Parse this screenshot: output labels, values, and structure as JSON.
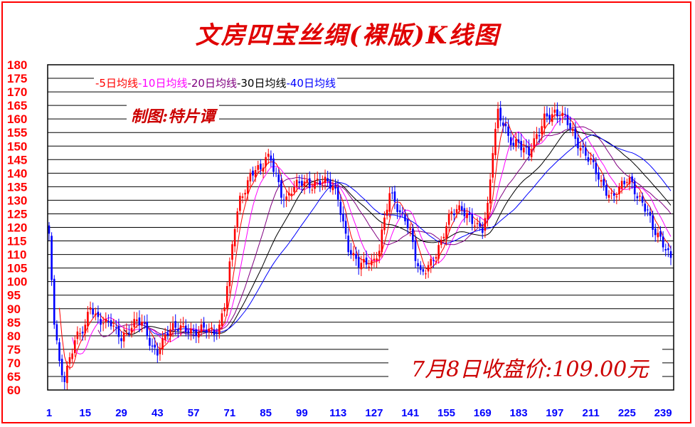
{
  "title": "文房四宝丝绸(裸版)K线图",
  "legend": [
    {
      "label": "-5日均线",
      "color": "#ff0000"
    },
    {
      "label": "-10日均线",
      "color": "#ff00ff"
    },
    {
      "label": "-20日均线",
      "color": "#800080"
    },
    {
      "label": "-30日均线",
      "color": "#000000"
    },
    {
      "label": "-40日均线",
      "color": "#0000ff"
    }
  ],
  "author": "制图:特片谭",
  "close_note": "7月8日收盘价:109.00元",
  "colors": {
    "border": "#ff0000",
    "up": "#ff0000",
    "down": "#0000ff",
    "axis_labels_y": "#ff0000",
    "axis_labels_x": "#0000ff"
  },
  "chart_data": {
    "type": "candlestick",
    "title": "文房四宝丝绸(裸版)K线图",
    "y_ticks": [
      60,
      65,
      70,
      75,
      80,
      85,
      90,
      95,
      100,
      105,
      110,
      115,
      120,
      125,
      130,
      135,
      140,
      145,
      150,
      155,
      160,
      165,
      170,
      175,
      180
    ],
    "x_ticks": [
      1,
      15,
      29,
      43,
      57,
      71,
      85,
      99,
      113,
      127,
      141,
      155,
      169,
      183,
      197,
      211,
      225,
      239
    ],
    "ylim": [
      60,
      180
    ],
    "x_range": [
      1,
      242
    ],
    "grid": "horizontal",
    "series": [
      {
        "name": "-5日均线",
        "color": "#ff0000"
      },
      {
        "name": "-10日均线",
        "color": "#ff00ff"
      },
      {
        "name": "-20日均线",
        "color": "#800080"
      },
      {
        "name": "-30日均线",
        "color": "#000000"
      },
      {
        "name": "-40日均线",
        "color": "#0000ff"
      }
    ],
    "price_path": [
      [
        1,
        115
      ],
      [
        3,
        85
      ],
      [
        5,
        70
      ],
      [
        7,
        65
      ],
      [
        9,
        72
      ],
      [
        11,
        78
      ],
      [
        13,
        80
      ],
      [
        15,
        83
      ],
      [
        17,
        92
      ],
      [
        19,
        88
      ],
      [
        21,
        86
      ],
      [
        23,
        84
      ],
      [
        25,
        84
      ],
      [
        27,
        81
      ],
      [
        29,
        80
      ],
      [
        31,
        82
      ],
      [
        33,
        84
      ],
      [
        35,
        85
      ],
      [
        37,
        84
      ],
      [
        39,
        80
      ],
      [
        41,
        76
      ],
      [
        43,
        75
      ],
      [
        45,
        78
      ],
      [
        47,
        81
      ],
      [
        49,
        82
      ],
      [
        51,
        83
      ],
      [
        53,
        84
      ],
      [
        55,
        83
      ],
      [
        57,
        81
      ],
      [
        59,
        81
      ],
      [
        61,
        82
      ],
      [
        63,
        82
      ],
      [
        65,
        82
      ],
      [
        67,
        84
      ],
      [
        69,
        92
      ],
      [
        71,
        105
      ],
      [
        73,
        120
      ],
      [
        75,
        130
      ],
      [
        77,
        135
      ],
      [
        79,
        140
      ],
      [
        81,
        142
      ],
      [
        83,
        140
      ],
      [
        85,
        145
      ],
      [
        87,
        145
      ],
      [
        89,
        140
      ],
      [
        91,
        133
      ],
      [
        93,
        130
      ],
      [
        95,
        133
      ],
      [
        97,
        135
      ],
      [
        99,
        137
      ],
      [
        101,
        137
      ],
      [
        103,
        136
      ],
      [
        105,
        137
      ],
      [
        107,
        136
      ],
      [
        109,
        136
      ],
      [
        111,
        135
      ],
      [
        113,
        132
      ],
      [
        115,
        122
      ],
      [
        117,
        112
      ],
      [
        119,
        108
      ],
      [
        121,
        106
      ],
      [
        123,
        107
      ],
      [
        125,
        108
      ],
      [
        127,
        108
      ],
      [
        129,
        112
      ],
      [
        131,
        122
      ],
      [
        133,
        132
      ],
      [
        135,
        130
      ],
      [
        137,
        126
      ],
      [
        139,
        124
      ],
      [
        141,
        118
      ],
      [
        143,
        108
      ],
      [
        145,
        102
      ],
      [
        147,
        105
      ],
      [
        149,
        108
      ],
      [
        151,
        111
      ],
      [
        153,
        114
      ],
      [
        155,
        120
      ],
      [
        157,
        125
      ],
      [
        159,
        127
      ],
      [
        161,
        128
      ],
      [
        163,
        125
      ],
      [
        165,
        122
      ],
      [
        167,
        119
      ],
      [
        169,
        119
      ],
      [
        171,
        128
      ],
      [
        173,
        150
      ],
      [
        175,
        163
      ],
      [
        177,
        158
      ],
      [
        179,
        152
      ],
      [
        181,
        150
      ],
      [
        183,
        152
      ],
      [
        185,
        150
      ],
      [
        187,
        148
      ],
      [
        189,
        151
      ],
      [
        191,
        154
      ],
      [
        193,
        160
      ],
      [
        195,
        162
      ],
      [
        197,
        163
      ],
      [
        199,
        162
      ],
      [
        201,
        160
      ],
      [
        203,
        156
      ],
      [
        205,
        152
      ],
      [
        207,
        150
      ],
      [
        209,
        148
      ],
      [
        211,
        145
      ],
      [
        213,
        140
      ],
      [
        215,
        135
      ],
      [
        217,
        133
      ],
      [
        219,
        132
      ],
      [
        221,
        134
      ],
      [
        223,
        136
      ],
      [
        225,
        137
      ],
      [
        227,
        135
      ],
      [
        229,
        131
      ],
      [
        231,
        130
      ],
      [
        233,
        127
      ],
      [
        235,
        120
      ],
      [
        237,
        116
      ],
      [
        239,
        113
      ],
      [
        241,
        110
      ],
      [
        242,
        109
      ]
    ],
    "annotation": "7月8日收盘价:109.00元"
  }
}
